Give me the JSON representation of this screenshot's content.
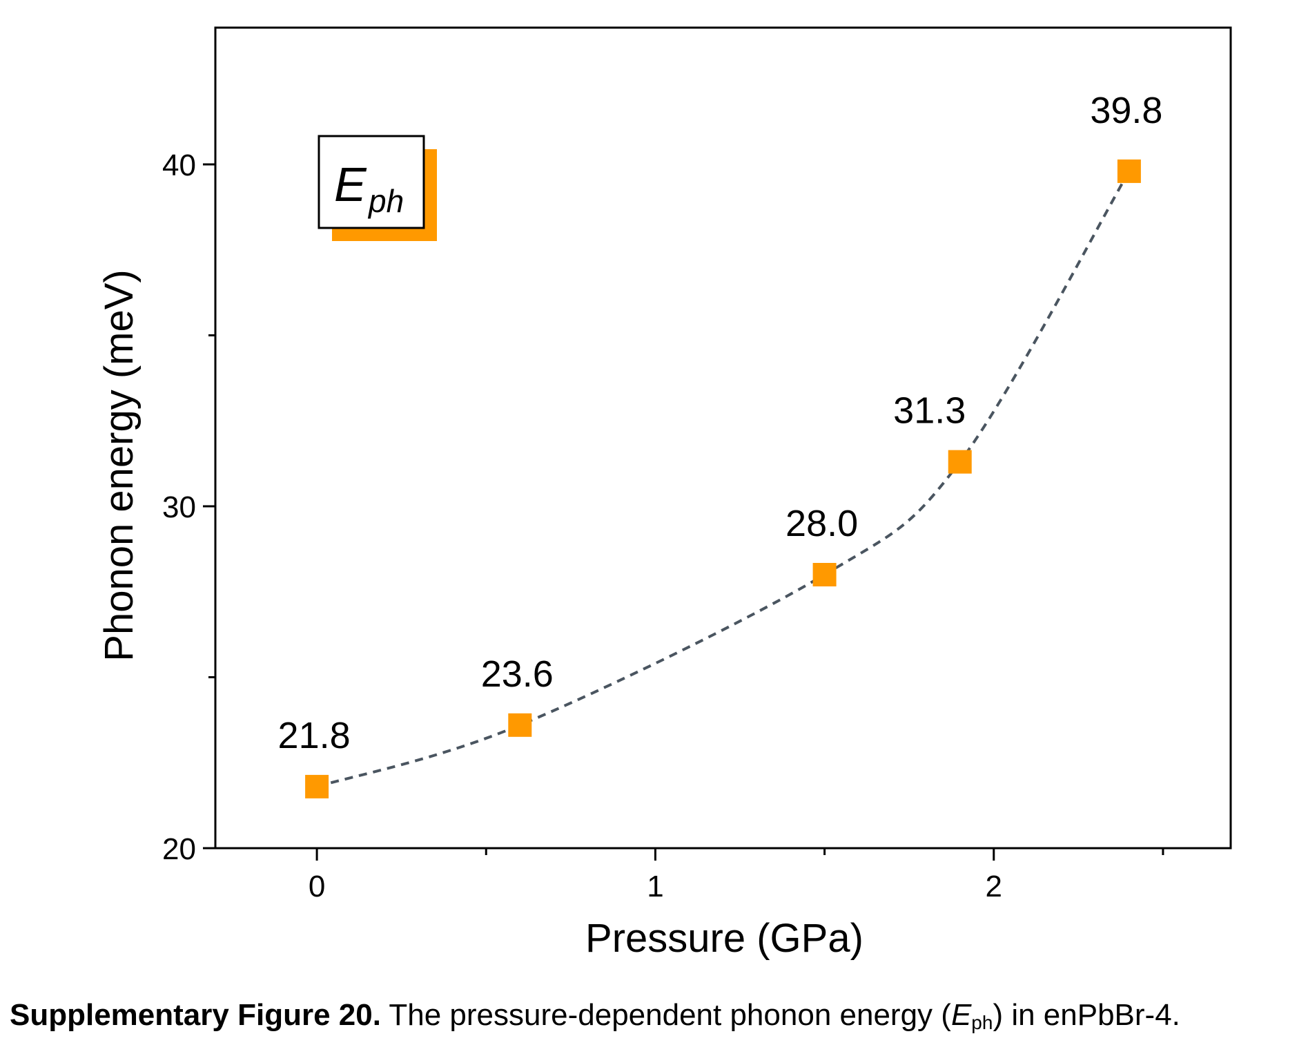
{
  "chart_data": {
    "type": "scatter",
    "xlabel": "Pressure (GPa)",
    "ylabel": "Phonon energy (meV)",
    "xlim": [
      -0.3,
      2.7
    ],
    "ylim": [
      20,
      44
    ],
    "x_ticks": [
      "0",
      "1",
      "2"
    ],
    "x_tick_values": [
      0,
      1,
      2
    ],
    "y_ticks": [
      "20",
      "30",
      "40"
    ],
    "y_tick_values": [
      20,
      30,
      40
    ],
    "series": [
      {
        "name": "Eph",
        "x": [
          0,
          0.6,
          1.5,
          1.9,
          2.4
        ],
        "y": [
          21.8,
          23.6,
          28.0,
          31.3,
          39.8
        ],
        "labels": [
          "21.8",
          "23.6",
          "28.0",
          "31.3",
          "39.8"
        ]
      }
    ],
    "legend": {
      "symbol_label": "E",
      "subscript": "ph",
      "placement": "top-left"
    },
    "fit_line": "dashed",
    "grid": false,
    "colors": {
      "marker": "#FF9900",
      "fit": "#4a5560",
      "axis": "#000000"
    }
  },
  "caption": {
    "bold": "Supplementary Figure 20.",
    "text_before": " The pressure-dependent phonon energy (",
    "italic": "E",
    "sub": "ph",
    "text_after": ") in enPbBr-4."
  }
}
